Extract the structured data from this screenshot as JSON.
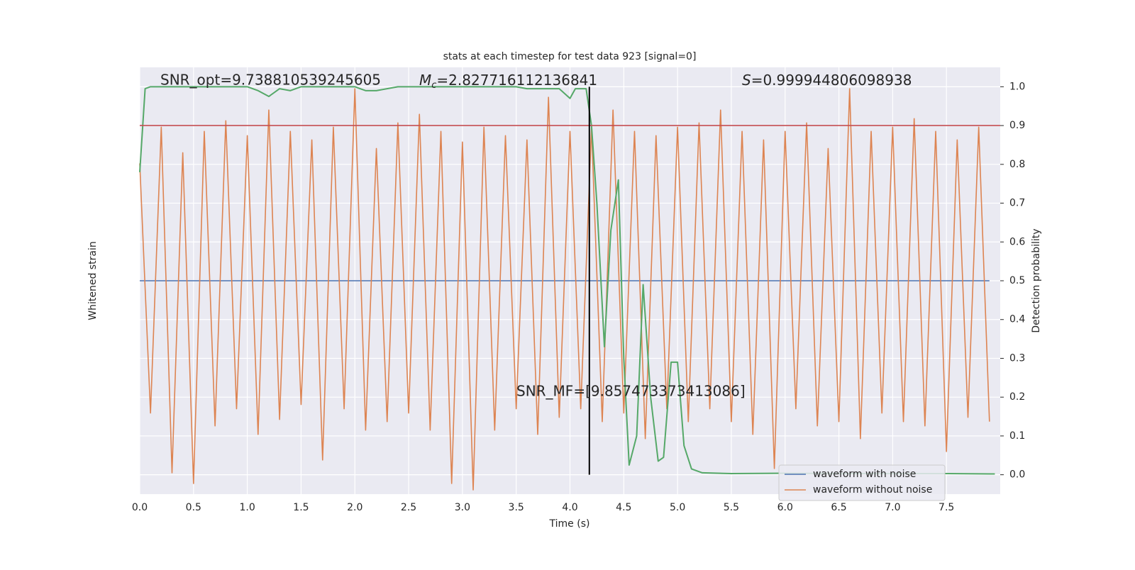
{
  "chart_data": {
    "type": "line",
    "title": "stats at each timestep for test data 923 [signal=0]",
    "xlabel": "Time (s)",
    "ylabel": "Whitened strain",
    "y2label": "Detection probability",
    "annotations": {
      "snr_opt": "SNR_opt=9.738810539245605",
      "mc": {
        "symbol": "M",
        "subscript": "c",
        "text": "=2.827716112136841"
      },
      "s": {
        "symbol": "S",
        "text": "=0.999944806098938"
      },
      "snr_mf": "SNR_MF=[9.857473373413086]"
    },
    "xlim": [
      0,
      8
    ],
    "ylim": [
      -1,
      1
    ],
    "y2lim": [
      -0.05,
      1.05
    ],
    "xticks": [
      {
        "value": 0,
        "label": "0.0"
      },
      0.5,
      {
        "value": 1,
        "label": "1.0"
      },
      1.5,
      {
        "value": 2,
        "label": "2.0"
      },
      2.5,
      {
        "value": 3,
        "label": "3.0"
      },
      3.5,
      {
        "value": 4,
        "label": "4.0"
      },
      4.5,
      {
        "value": 5,
        "label": "5.0"
      },
      5.5,
      {
        "value": 6,
        "label": "6.0"
      },
      6.5,
      {
        "value": 7,
        "label": "7.0"
      },
      7.5
    ],
    "y2ticks": [
      {
        "value": 0,
        "label": "0.0"
      },
      0.1,
      0.2,
      0.3,
      0.4,
      0.5,
      0.6,
      0.7,
      0.8,
      0.9,
      {
        "value": 1,
        "label": "1.0"
      }
    ],
    "grid": true,
    "legend": "lower right",
    "x": [
      0,
      0.1,
      0.2,
      0.3,
      0.4,
      0.5,
      0.6,
      0.7,
      0.8,
      0.9,
      1,
      1.1,
      1.2,
      1.3,
      1.4,
      1.5,
      1.6,
      1.7,
      1.8,
      1.9,
      2,
      2.1,
      2.2,
      2.3,
      2.4,
      2.5,
      2.6,
      2.7,
      2.8,
      2.9,
      3,
      3.1,
      3.2,
      3.3,
      3.4,
      3.5,
      3.6,
      3.7,
      3.8,
      3.9,
      4,
      4.1,
      4.2,
      4.3,
      4.4,
      4.5,
      4.6,
      4.7,
      4.8,
      4.9,
      5,
      5.1,
      5.2,
      5.3,
      5.4,
      5.5,
      5.6,
      5.7,
      5.8,
      5.9,
      6,
      6.1,
      6.2,
      6.3,
      6.4,
      6.5,
      6.6,
      6.7,
      6.8,
      6.9,
      7,
      7.1,
      7.2,
      7.3,
      7.4,
      7.5,
      7.6,
      7.7,
      7.8,
      7.9
    ],
    "series": [
      {
        "name": "waveform with noise",
        "color": "#4c72b0",
        "values": [
          0,
          0,
          0,
          0,
          0,
          0,
          0,
          0,
          0,
          0,
          0,
          0,
          0,
          0,
          0,
          0,
          0,
          0,
          0,
          0,
          0,
          0,
          0,
          0,
          0,
          0,
          0,
          0,
          0,
          0,
          0,
          0,
          0,
          0,
          0,
          0,
          0,
          0,
          0,
          0,
          0,
          0,
          0,
          0,
          0,
          0,
          0,
          0,
          0,
          0,
          0,
          0,
          0,
          0,
          0,
          0,
          0,
          0,
          0,
          0,
          0,
          0,
          0,
          0,
          0,
          0,
          0,
          0,
          0,
          0,
          0,
          0,
          0,
          0,
          0,
          0,
          0,
          0,
          0,
          0
        ]
      },
      {
        "name": "waveform without noise",
        "color": "#dd8452",
        "values": [
          0.55,
          -0.62,
          0.72,
          -0.9,
          0.6,
          -0.95,
          0.7,
          -0.68,
          0.75,
          -0.6,
          0.68,
          -0.72,
          0.8,
          -0.65,
          0.7,
          -0.58,
          0.66,
          -0.84,
          0.72,
          -0.6,
          0.9,
          -0.7,
          0.62,
          -0.66,
          0.74,
          -0.62,
          0.78,
          -0.7,
          0.7,
          -0.95,
          0.65,
          -0.98,
          0.72,
          -0.7,
          0.68,
          -0.6,
          0.66,
          -0.72,
          0.86,
          -0.64,
          0.7,
          -0.6,
          0.72,
          -0.66,
          0.8,
          -0.62,
          0.7,
          -0.74,
          0.68,
          -0.6,
          0.72,
          -0.66,
          0.74,
          -0.6,
          0.8,
          -0.66,
          0.7,
          -0.72,
          0.66,
          -0.88,
          0.7,
          -0.6,
          0.74,
          -0.68,
          0.62,
          -0.66,
          0.9,
          -0.74,
          0.7,
          -0.62,
          0.72,
          -0.66,
          0.76,
          -0.68,
          0.7,
          -0.8,
          0.66,
          -0.64,
          0.72,
          -0.66
        ]
      },
      {
        "color": "#55a868",
        "axis": "y2",
        "x": [
          0,
          0.05,
          0.1,
          0.5,
          1,
          1.1,
          1.2,
          1.3,
          1.4,
          1.5,
          2,
          2.1,
          2.2,
          2.4,
          3,
          3.5,
          3.6,
          3.9,
          4,
          4.05,
          4.15,
          4.2,
          4.25,
          4.32,
          4.38,
          4.45,
          4.5,
          4.55,
          4.62,
          4.68,
          4.75,
          4.82,
          4.87,
          4.94,
          5,
          5.06,
          5.13,
          5.23,
          5.5,
          6,
          6.5,
          7,
          7.5,
          7.95
        ],
        "values": [
          0.78,
          0.995,
          1,
          1,
          1,
          0.99,
          0.975,
          0.995,
          0.99,
          1,
          1,
          0.99,
          0.99,
          1,
          1,
          1,
          0.995,
          0.995,
          0.97,
          0.995,
          0.995,
          0.9,
          0.7,
          0.33,
          0.63,
          0.76,
          0.3,
          0.025,
          0.1,
          0.49,
          0.2,
          0.035,
          0.045,
          0.29,
          0.29,
          0.075,
          0.015,
          0.005,
          0.003,
          0.004,
          0.003,
          0.003,
          0.003,
          0.002
        ]
      }
    ],
    "threshold": {
      "value": 0.9,
      "color": "#c44e52"
    },
    "marker_x": 4.18
  }
}
